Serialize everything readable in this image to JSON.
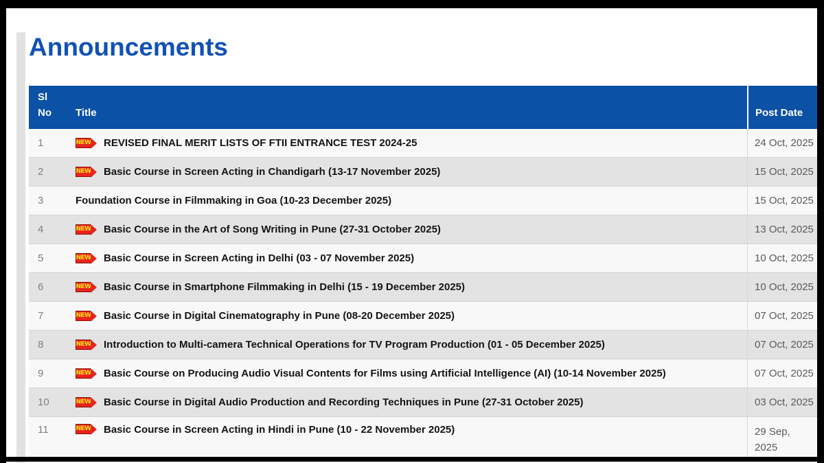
{
  "page": {
    "title": "Announcements"
  },
  "table": {
    "columns": {
      "sl_no": "Sl No",
      "title": "Title",
      "post_date": "Post Date"
    },
    "new_icon_label": "NEW",
    "rows": [
      {
        "sl": "1",
        "new": true,
        "title": "REVISED FINAL MERIT LISTS OF FTII ENTRANCE TEST 2024-25",
        "date": "24 Oct, 2025"
      },
      {
        "sl": "2",
        "new": true,
        "title": "Basic Course in Screen Acting in Chandigarh (13-17 November 2025)",
        "date": "15 Oct, 2025"
      },
      {
        "sl": "3",
        "new": false,
        "title": "Foundation Course in Filmmaking in Goa (10-23 December 2025)",
        "date": "15 Oct, 2025"
      },
      {
        "sl": "4",
        "new": true,
        "title": "Basic Course in the Art of Song Writing in Pune (27-31 October 2025)",
        "date": "13 Oct, 2025"
      },
      {
        "sl": "5",
        "new": true,
        "title": "Basic Course in Screen Acting in Delhi (03 - 07 November 2025)",
        "date": "10 Oct, 2025"
      },
      {
        "sl": "6",
        "new": true,
        "title": "Basic Course in Smartphone Filmmaking in Delhi (15 - 19 December 2025)",
        "date": "10 Oct, 2025"
      },
      {
        "sl": "7",
        "new": true,
        "title": "Basic Course in Digital Cinematography in Pune (08-20 December 2025)",
        "date": "07 Oct, 2025"
      },
      {
        "sl": "8",
        "new": true,
        "title": "Introduction to Multi-camera Technical Operations for TV Program Production (01 - 05 December 2025)",
        "date": "07 Oct, 2025"
      },
      {
        "sl": "9",
        "new": true,
        "title": "Basic Course on Producing Audio Visual Contents for Films using Artificial Intelligence (AI) (10-14 November 2025)",
        "date": "07 Oct, 2025"
      },
      {
        "sl": "10",
        "new": true,
        "title": "Basic Course in Digital Audio Production and Recording Techniques in Pune (27-31 October 2025)",
        "date": "03 Oct, 2025"
      },
      {
        "sl": "11",
        "new": true,
        "title": "Basic Course in Screen Acting in Hindi in Pune (10 - 22 November 2025)",
        "date": "29 Sep, 2025"
      }
    ]
  },
  "colors": {
    "heading_blue": "#1251b5",
    "table_header_bg": "#0b51a5",
    "table_header_text": "#ffffff",
    "row_light": "#f8f8f9",
    "row_dark": "#e3e3e4",
    "new_icon_bg": "#e8241c",
    "new_icon_text": "#ffe31b",
    "frame_black": "#000000"
  }
}
